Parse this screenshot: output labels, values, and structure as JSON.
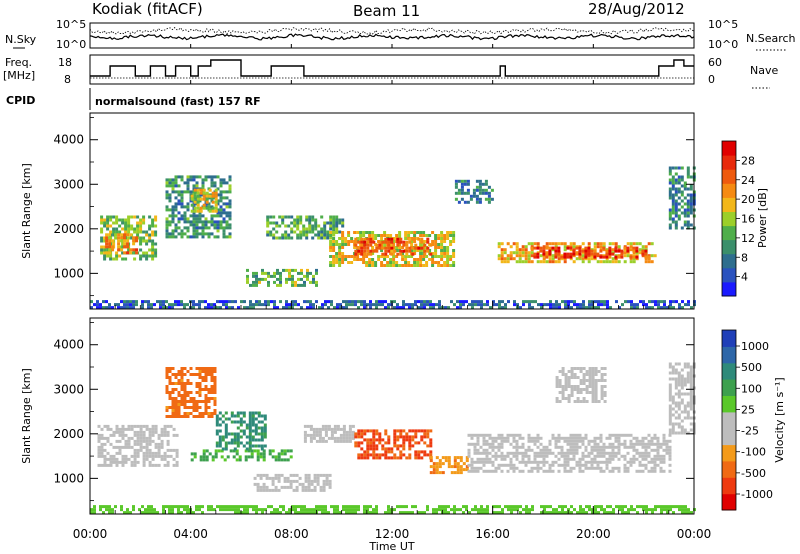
{
  "header": {
    "station": "Kodiak (fitACF)",
    "beam": "Beam 11",
    "date": "28/Aug/2012"
  },
  "strip": {
    "nsky_label": "N.Sky",
    "nsky_ticks": [
      "10^5",
      "10^0"
    ],
    "nsearch_label": "N.Search",
    "nsearch_ticks": [
      "10^5",
      "10^0"
    ],
    "freq_label": "Freq.",
    "freq_unit": "[MHz]",
    "freq_ticks": [
      "18",
      "8"
    ],
    "nave_label": "Nave",
    "nave_ticks": [
      "60",
      "0"
    ],
    "cpid_label": "CPID",
    "cpid_value": "normalsound (fast) 157 RF"
  },
  "colors": {
    "power": [
      "#1a1aff",
      "#2a52be",
      "#2e6e8e",
      "#3b8f6b",
      "#4fae4a",
      "#9ccf2a",
      "#f2b71a",
      "#f58a12",
      "#ee5a0e",
      "#e82a0c",
      "#e00000"
    ],
    "velocity": [
      "#e00000",
      "#ee3a10",
      "#f06a14",
      "#f39a1a",
      "#bdbdbd",
      "#bdbdbd",
      "#5ac82a",
      "#3da04e",
      "#2e8a7a",
      "#2d66a8",
      "#1f3fb8"
    ]
  },
  "chart_data": [
    {
      "type": "heatmap",
      "title": "Power",
      "xlabel": "Time UT",
      "ylabel": "Slant Range [km]",
      "x_ticks": [
        "00:00",
        "04:00",
        "08:00",
        "12:00",
        "16:00",
        "20:00",
        "00:00"
      ],
      "y_ticks": [
        "1000",
        "2000",
        "3000",
        "4000"
      ],
      "ylim": [
        200,
        4600
      ],
      "colorbar_label": "Power [dB]",
      "colorbar_ticks": [
        "4",
        "8",
        "12",
        "16",
        "20",
        "24",
        "28"
      ],
      "colorbar_range": [
        0,
        32
      ],
      "regions": [
        {
          "t0": 0.4,
          "t1": 2.6,
          "r0": 1300,
          "r1": 2300,
          "value": 14
        },
        {
          "t0": 0.6,
          "t1": 1.8,
          "r0": 1450,
          "r1": 1900,
          "value": 22
        },
        {
          "t0": 3.0,
          "t1": 5.6,
          "r0": 1800,
          "r1": 3200,
          "value": 10
        },
        {
          "t0": 4.0,
          "t1": 5.0,
          "r0": 2400,
          "r1": 2900,
          "value": 18
        },
        {
          "t0": 6.2,
          "t1": 9.0,
          "r0": 700,
          "r1": 1100,
          "value": 13
        },
        {
          "t0": 7.0,
          "t1": 10.0,
          "r0": 1800,
          "r1": 2300,
          "value": 12
        },
        {
          "t0": 9.5,
          "t1": 14.5,
          "r0": 1200,
          "r1": 1950,
          "value": 18
        },
        {
          "t0": 10.5,
          "t1": 13.5,
          "r0": 1400,
          "r1": 1800,
          "value": 25
        },
        {
          "t0": 14.5,
          "t1": 16.0,
          "r0": 2600,
          "r1": 3100,
          "value": 8
        },
        {
          "t0": 16.2,
          "t1": 22.5,
          "r0": 1250,
          "r1": 1700,
          "value": 20
        },
        {
          "t0": 17.5,
          "t1": 22.2,
          "r0": 1350,
          "r1": 1600,
          "value": 27
        },
        {
          "t0": 23.0,
          "t1": 24.0,
          "r0": 2000,
          "r1": 3400,
          "value": 9
        },
        {
          "t0": 0.0,
          "t1": 24.0,
          "r0": 250,
          "r1": 400,
          "value": 6
        }
      ]
    },
    {
      "type": "heatmap",
      "title": "Velocity",
      "xlabel": "Time UT",
      "ylabel": "Slant Range [km]",
      "x_ticks": [
        "00:00",
        "04:00",
        "08:00",
        "12:00",
        "16:00",
        "20:00",
        "00:00"
      ],
      "y_ticks": [
        "1000",
        "2000",
        "3000",
        "4000"
      ],
      "ylim": [
        200,
        4600
      ],
      "colorbar_label": "Velocity [m s⁻¹]",
      "colorbar_ticks": [
        "1000",
        "500",
        "100",
        "25",
        "-25",
        "-100",
        "-500",
        "-1000"
      ],
      "regions": [
        {
          "t0": 0.3,
          "t1": 3.5,
          "r0": 1300,
          "r1": 2200,
          "value": 0
        },
        {
          "t0": 3.0,
          "t1": 5.0,
          "r0": 2400,
          "r1": 3500,
          "value": -150
        },
        {
          "t0": 4.0,
          "t1": 8.0,
          "r0": 1400,
          "r1": 1650,
          "value": 120
        },
        {
          "t0": 5.0,
          "t1": 7.0,
          "r0": 1650,
          "r1": 2500,
          "value": 300
        },
        {
          "t0": 6.5,
          "t1": 9.5,
          "r0": 700,
          "r1": 1100,
          "value": 0
        },
        {
          "t0": 8.5,
          "t1": 10.5,
          "r0": 1800,
          "r1": 2200,
          "value": 0
        },
        {
          "t0": 10.5,
          "t1": 13.5,
          "r0": 1450,
          "r1": 2100,
          "value": -300
        },
        {
          "t0": 13.5,
          "t1": 15.0,
          "r0": 1100,
          "r1": 1500,
          "value": -80
        },
        {
          "t0": 15.0,
          "t1": 23.0,
          "r0": 1150,
          "r1": 2000,
          "value": 0
        },
        {
          "t0": 18.5,
          "t1": 20.5,
          "r0": 2700,
          "r1": 3500,
          "value": 0
        },
        {
          "t0": 23.0,
          "t1": 24.0,
          "r0": 2000,
          "r1": 3600,
          "value": 0
        },
        {
          "t0": 0.0,
          "t1": 24.0,
          "r0": 250,
          "r1": 400,
          "value": 60
        }
      ]
    }
  ]
}
